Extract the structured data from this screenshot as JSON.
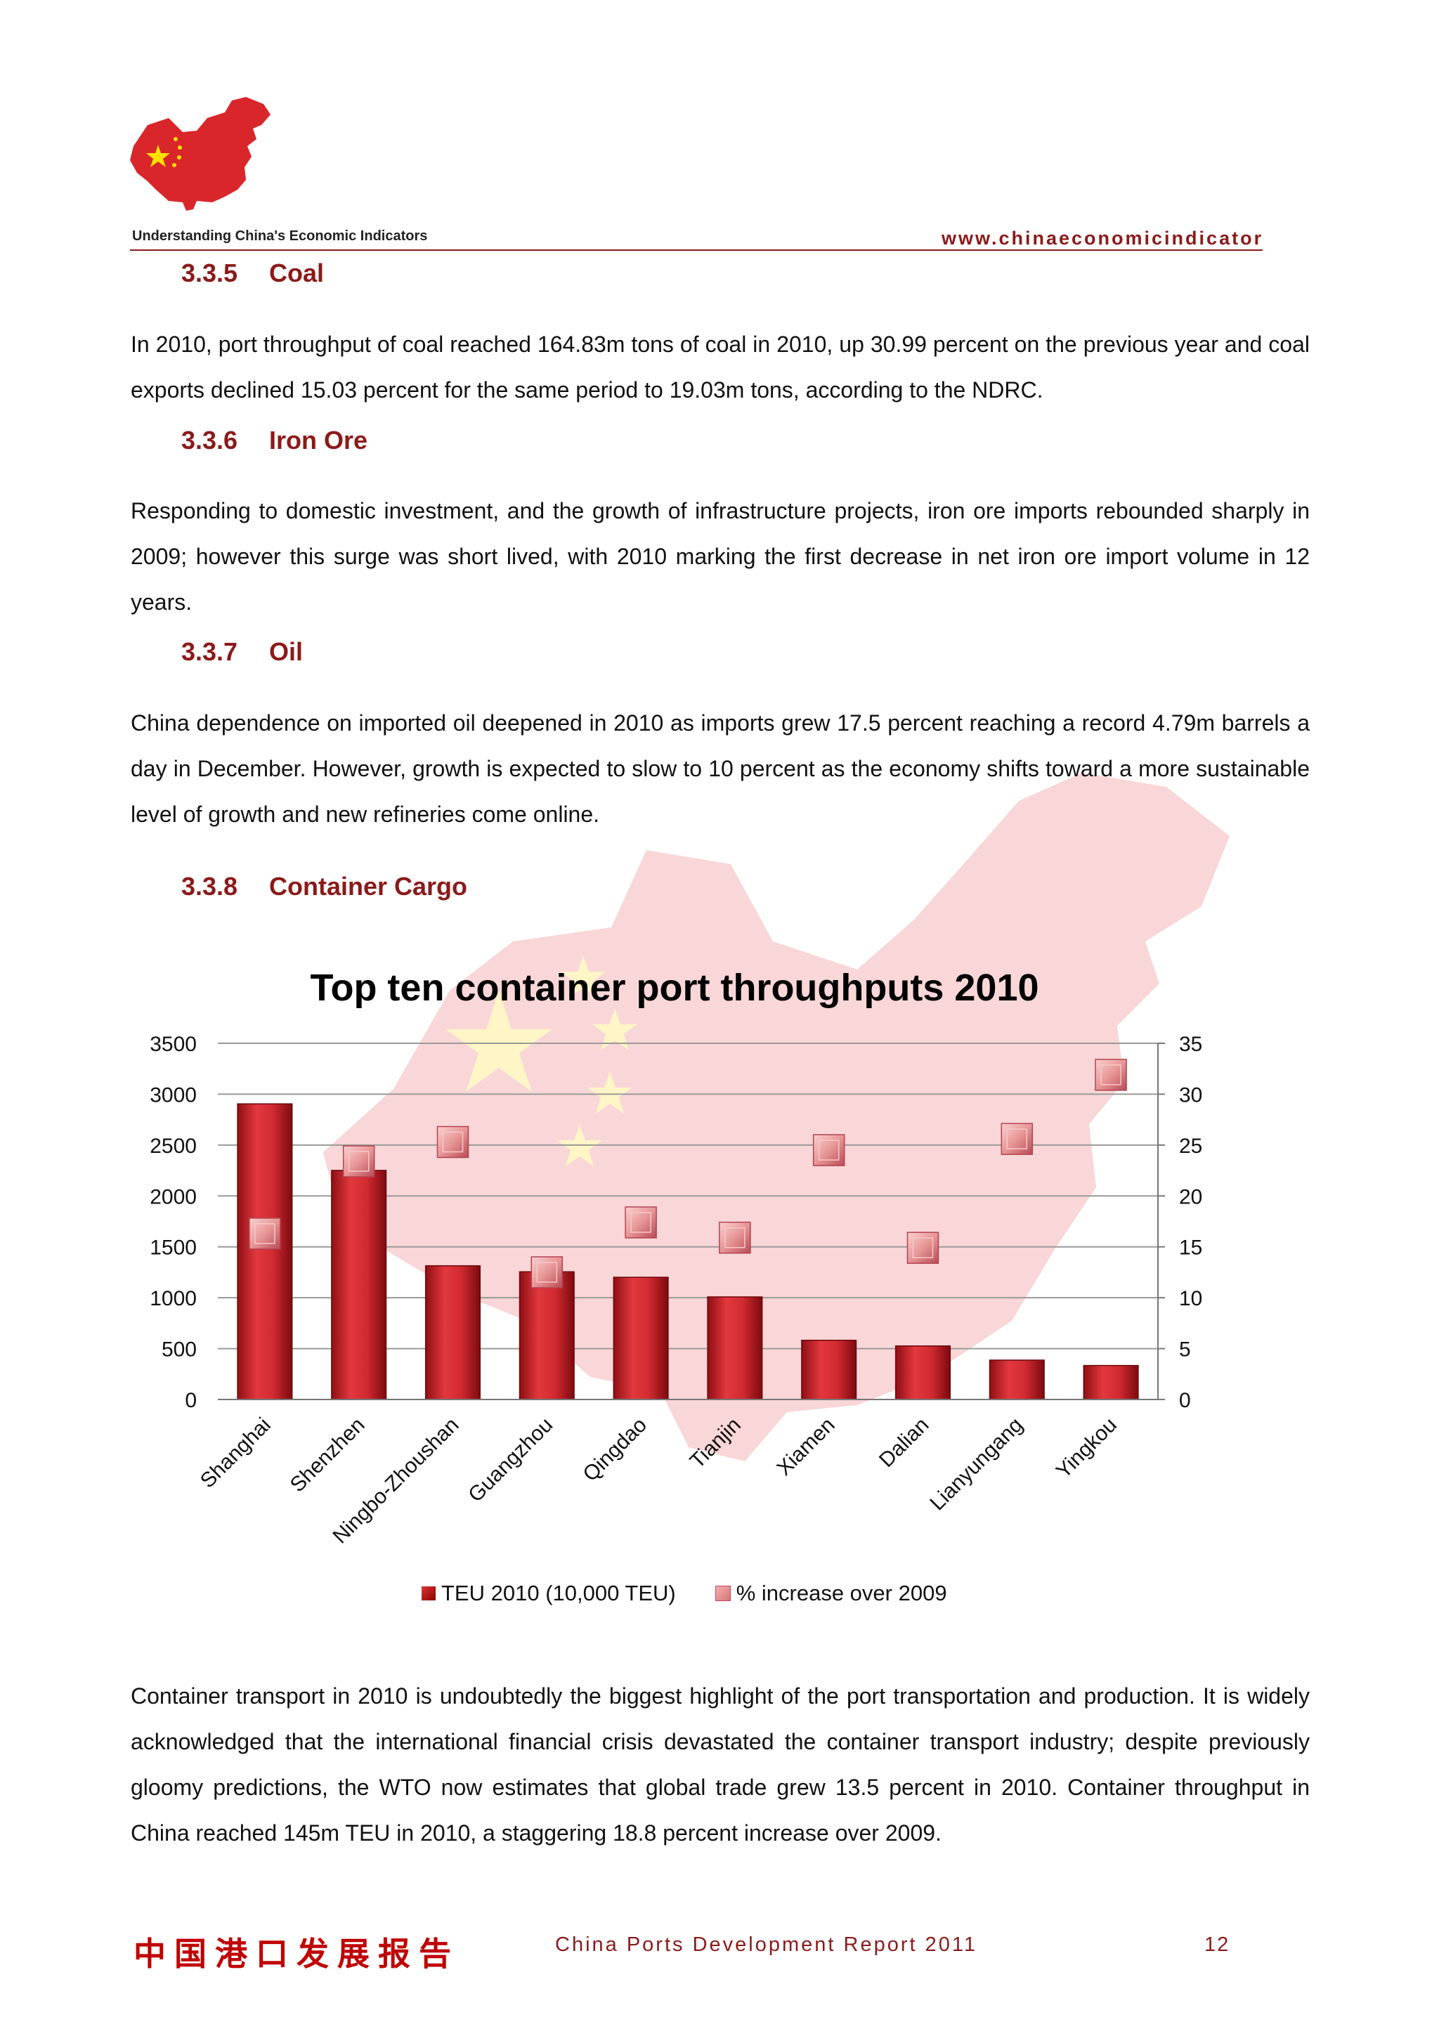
{
  "header": {
    "tagline": "Understanding China's Economic Indicators",
    "url": "www.chinaeconomicindicator"
  },
  "sections": [
    {
      "number": "3.3.5",
      "title": "Coal",
      "text": "In 2010, port throughput of coal reached 164.83m tons of coal in 2010, up 30.99 percent on the previous year and coal exports declined 15.03 percent for the same period to 19.03m tons, according to the NDRC."
    },
    {
      "number": "3.3.6",
      "title": "Iron Ore",
      "text": "Responding to domestic investment, and the growth of infrastructure projects, iron ore imports rebounded sharply in 2009; however this surge was short lived, with 2010 marking the first decrease in net iron ore import volume in 12 years."
    },
    {
      "number": "3.3.7",
      "title": "Oil",
      "text": "China dependence on imported oil deepened in 2010 as imports grew 17.5 percent reaching a record 4.79m barrels a day in December. However, growth is expected to slow to 10 percent as the economy shifts toward a more sustainable level of growth and new refineries come online."
    },
    {
      "number": "3.3.8",
      "title": "Container Cargo",
      "text": "Container transport in 2010 is undoubtedly the biggest highlight of the port transportation and production. It is widely acknowledged that the international financial crisis devastated the container transport industry; despite previously gloomy predictions, the WTO now estimates that global trade grew 13.5 percent in 2010. Container throughput in China reached 145m TEU in 2010, a staggering 18.8 percent increase over 2009."
    }
  ],
  "chart_data": {
    "type": "bar",
    "title": "Top ten container port throughputs 2010",
    "categories": [
      "Shanghai",
      "Shenzhen",
      "Ningbo-Zhoushan",
      "Guangzhou",
      "Qingdao",
      "Tianjin",
      "Xiamen",
      "Dalian",
      "Lianyungang",
      "Yingkou"
    ],
    "series": [
      {
        "name": "TEU 2010 (10,000 TEU)",
        "axis": "left",
        "mark": "bar",
        "color": "#c0282d",
        "values": [
          2905,
          2251,
          1314,
          1255,
          1201,
          1008,
          582,
          526,
          387,
          334
        ]
      },
      {
        "name": "% increase over 2009",
        "axis": "right",
        "mark": "square-marker",
        "color": "#e58f8f",
        "values": [
          16.3,
          23.4,
          25.3,
          12.5,
          17.4,
          15.9,
          24.5,
          14.9,
          25.6,
          31.9
        ]
      }
    ],
    "y_left": {
      "ylim": [
        0,
        3500
      ],
      "ticks": [
        0,
        500,
        1000,
        1500,
        2000,
        2500,
        3000,
        3500
      ]
    },
    "y_right": {
      "ylim": [
        0,
        35
      ],
      "ticks": [
        0,
        5,
        10,
        15,
        20,
        25,
        30,
        35
      ]
    },
    "grid": true,
    "legend_position": "bottom"
  },
  "footer": {
    "chinese_title": "中国港口发展报告",
    "report_title": "China Ports Development Report 2011",
    "page_number": "12"
  }
}
